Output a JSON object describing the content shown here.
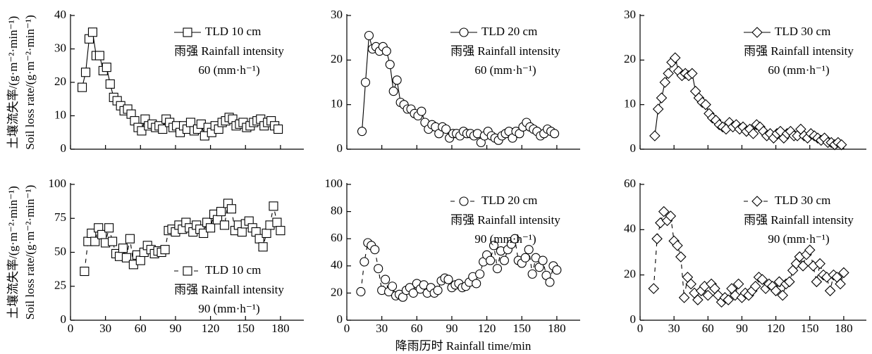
{
  "chart_data": [
    {
      "type": "line",
      "ylabel_cn": "土壤流失率/(g·m⁻²·min⁻¹)",
      "ylabel": "Soil loss rate/(g·m⁻²·min⁻¹)",
      "xlim": [
        0,
        200
      ],
      "xticks": [
        0,
        30,
        60,
        90,
        120,
        150,
        180
      ],
      "show_xtick_labels": false,
      "ylim": [
        0,
        40
      ],
      "yticks": [
        0,
        10,
        20,
        30,
        40
      ],
      "legend_loc": "upper right",
      "annotation": [
        "雨强 Rainfall intensity",
        "60 (mm·h⁻¹)"
      ],
      "series": [
        {
          "name": "TLD 10 cm",
          "color": "#000000",
          "marker": "square",
          "linestyle": "solid",
          "x": [
            10,
            13,
            16,
            19,
            22,
            25,
            28,
            31,
            34,
            37,
            40,
            43,
            46,
            49,
            52,
            55,
            58,
            61,
            64,
            67,
            70,
            73,
            76,
            79,
            82,
            85,
            88,
            91,
            94,
            97,
            100,
            103,
            106,
            109,
            112,
            115,
            118,
            121,
            124,
            127,
            130,
            133,
            136,
            139,
            142,
            145,
            148,
            151,
            154,
            157,
            160,
            163,
            166,
            169,
            172,
            175,
            178
          ],
          "values": [
            18.5,
            23,
            33,
            35,
            28,
            28,
            23.5,
            24.5,
            19.5,
            15.5,
            14.5,
            13,
            11.5,
            12,
            10.5,
            8.5,
            6.5,
            5.5,
            9,
            7,
            7.5,
            6.5,
            7,
            6,
            9,
            8,
            6.5,
            7,
            5,
            7,
            6,
            8,
            5.5,
            6,
            7.5,
            4,
            6.5,
            5,
            7,
            6,
            8,
            8.5,
            9.5,
            9,
            7,
            7.5,
            8,
            6.5,
            7,
            8,
            8.5,
            9,
            7,
            8,
            8.5,
            7,
            6
          ]
        }
      ]
    },
    {
      "type": "line",
      "xlim": [
        0,
        200
      ],
      "xticks": [
        0,
        30,
        60,
        90,
        120,
        150,
        180
      ],
      "show_xtick_labels": false,
      "ylim": [
        0,
        30
      ],
      "yticks": [
        0,
        10,
        20,
        30
      ],
      "legend_loc": "upper right",
      "annotation": [
        "雨强 Rainfall intensity",
        "60 (mm·h⁻¹)"
      ],
      "series": [
        {
          "name": "TLD 20 cm",
          "color": "#000000",
          "marker": "circle",
          "linestyle": "solid",
          "x": [
            13,
            16,
            19,
            22,
            25,
            28,
            31,
            34,
            37,
            40,
            43,
            46,
            49,
            52,
            55,
            58,
            61,
            64,
            67,
            70,
            73,
            76,
            79,
            82,
            85,
            88,
            91,
            94,
            97,
            100,
            103,
            106,
            109,
            112,
            115,
            118,
            121,
            124,
            127,
            130,
            133,
            136,
            139,
            142,
            145,
            148,
            151,
            154,
            157,
            160,
            163,
            166,
            169,
            172,
            175,
            178
          ],
          "values": [
            4,
            15,
            25.5,
            22.5,
            23,
            22,
            23,
            22,
            19,
            13,
            15.5,
            10.5,
            10,
            9,
            9,
            8,
            7.5,
            8.5,
            6,
            4.5,
            5.5,
            5,
            3.5,
            5,
            4.5,
            2.5,
            3.5,
            3.5,
            3,
            4,
            3.5,
            3.5,
            3,
            3.5,
            1.5,
            3,
            4,
            3,
            2.5,
            2,
            3,
            3.5,
            4,
            2.5,
            4,
            3.5,
            5,
            6,
            5,
            4.5,
            4,
            3,
            3.5,
            4.5,
            4,
            3.5
          ]
        }
      ]
    },
    {
      "type": "line",
      "xlim": [
        0,
        200
      ],
      "xticks": [
        0,
        30,
        60,
        90,
        120,
        150,
        180
      ],
      "show_xtick_labels": false,
      "ylim": [
        0,
        30
      ],
      "yticks": [
        0,
        10,
        20,
        30
      ],
      "legend_loc": "upper right",
      "annotation": [
        "雨强 Rainfall intensity",
        "60 (mm·h⁻¹)"
      ],
      "series": [
        {
          "name": "TLD 30 cm",
          "color": "#000000",
          "marker": "diamond",
          "linestyle": "solid",
          "x": [
            13,
            16,
            19,
            22,
            25,
            28,
            31,
            34,
            37,
            40,
            43,
            46,
            49,
            52,
            55,
            58,
            61,
            64,
            67,
            70,
            73,
            76,
            79,
            82,
            85,
            88,
            91,
            94,
            97,
            100,
            103,
            106,
            109,
            112,
            115,
            118,
            121,
            124,
            127,
            130,
            133,
            136,
            139,
            142,
            145,
            148,
            151,
            154,
            157,
            160,
            163,
            166,
            169,
            172,
            175,
            178
          ],
          "values": [
            3,
            9,
            11.5,
            15,
            17,
            19.5,
            20.5,
            17.5,
            16.5,
            17,
            16.5,
            17,
            13,
            11.5,
            10.5,
            10,
            8,
            7,
            6.5,
            5.5,
            5,
            4.5,
            6,
            5,
            5.5,
            4.5,
            5,
            4,
            4.5,
            3.5,
            5.5,
            5,
            4,
            3,
            3.5,
            2.5,
            3.5,
            4,
            2.5,
            3.5,
            4,
            3,
            3,
            4.5,
            3,
            2.5,
            3.5,
            3,
            2.5,
            2,
            2.5,
            1.5,
            1.5,
            1,
            1.5,
            1
          ]
        }
      ]
    },
    {
      "type": "line",
      "ylabel_cn": "土壤流失率/(g·m⁻²·min⁻¹)",
      "ylabel": "Soil loss rate/(g·m⁻²·min⁻¹)",
      "xlim": [
        0,
        200
      ],
      "xticks": [
        0,
        30,
        60,
        90,
        120,
        150,
        180
      ],
      "show_xtick_labels": true,
      "ylim": [
        0,
        100
      ],
      "yticks": [
        0,
        25,
        50,
        75,
        100
      ],
      "legend_loc": "lower right",
      "annotation": [
        "雨强 Rainfall intensity",
        "90 (mm·h⁻¹)"
      ],
      "series": [
        {
          "name": "TLD 10 cm",
          "color": "#000000",
          "marker": "square",
          "linestyle": "dashed",
          "x": [
            12,
            15,
            18,
            21,
            24,
            27,
            30,
            33,
            36,
            39,
            42,
            45,
            48,
            51,
            54,
            57,
            60,
            63,
            66,
            69,
            72,
            75,
            78,
            81,
            84,
            87,
            90,
            93,
            96,
            99,
            102,
            105,
            108,
            111,
            114,
            117,
            120,
            123,
            126,
            129,
            132,
            135,
            138,
            141,
            144,
            147,
            150,
            153,
            156,
            159,
            162,
            165,
            168,
            171,
            174,
            177,
            180
          ],
          "values": [
            36,
            58,
            64,
            58,
            68,
            63,
            57,
            68,
            58,
            49,
            47,
            53,
            46,
            60,
            41,
            48,
            44,
            50,
            55,
            52,
            49,
            51,
            50,
            52,
            66,
            67,
            65,
            70,
            67,
            72,
            68,
            65,
            70,
            67,
            64,
            72,
            68,
            78,
            74,
            80,
            70,
            86,
            82,
            66,
            70,
            65,
            71,
            73,
            68,
            65,
            60,
            54,
            64,
            70,
            84,
            72,
            66
          ]
        }
      ]
    },
    {
      "type": "line",
      "xlabel": "降雨历时 Rainfall time/min",
      "xlim": [
        0,
        200
      ],
      "xticks": [
        0,
        30,
        60,
        90,
        120,
        150,
        180
      ],
      "show_xtick_labels": true,
      "ylim": [
        0,
        100
      ],
      "yticks": [
        0,
        20,
        40,
        60,
        80,
        100
      ],
      "legend_loc": "upper right",
      "annotation": [
        "雨强 Rainfall intensity",
        "90 (mm·h⁻¹)"
      ],
      "series": [
        {
          "name": "TLD 20 cm",
          "color": "#000000",
          "marker": "circle",
          "linestyle": "dashed",
          "x": [
            12,
            15,
            18,
            21,
            24,
            27,
            30,
            33,
            36,
            39,
            42,
            45,
            48,
            51,
            54,
            57,
            60,
            63,
            66,
            69,
            72,
            75,
            78,
            81,
            84,
            87,
            90,
            93,
            96,
            99,
            102,
            105,
            108,
            111,
            114,
            117,
            120,
            123,
            126,
            129,
            132,
            135,
            138,
            141,
            144,
            147,
            150,
            153,
            156,
            159,
            162,
            165,
            168,
            171,
            174,
            177,
            180
          ],
          "values": [
            21,
            43,
            57,
            55,
            52,
            38,
            22,
            30,
            21,
            25,
            18,
            19,
            17,
            22,
            24,
            20,
            27,
            23,
            26,
            20,
            24,
            20,
            22,
            29,
            31,
            30,
            24,
            26,
            27,
            24,
            25,
            28,
            32,
            27,
            34,
            43,
            48,
            44,
            55,
            38,
            51,
            44,
            52,
            56,
            60,
            44,
            42,
            46,
            52,
            34,
            46,
            39,
            44,
            33,
            28,
            40,
            37
          ]
        }
      ]
    },
    {
      "type": "line",
      "xlim": [
        0,
        200
      ],
      "xticks": [
        0,
        30,
        60,
        90,
        120,
        150,
        180
      ],
      "show_xtick_labels": true,
      "ylim": [
        0,
        60
      ],
      "yticks": [
        0,
        20,
        40,
        60
      ],
      "legend_loc": "upper right",
      "annotation": [
        "雨强 Rainfall intensity",
        "90 (mm·h⁻¹)"
      ],
      "series": [
        {
          "name": "TLD 30 cm",
          "color": "#000000",
          "marker": "diamond",
          "linestyle": "dashed",
          "x": [
            12,
            15,
            18,
            21,
            24,
            27,
            30,
            33,
            36,
            39,
            42,
            45,
            48,
            51,
            54,
            57,
            60,
            63,
            66,
            69,
            72,
            75,
            78,
            81,
            84,
            87,
            90,
            93,
            96,
            99,
            102,
            105,
            108,
            111,
            114,
            117,
            120,
            123,
            126,
            129,
            132,
            135,
            138,
            141,
            144,
            147,
            150,
            153,
            156,
            159,
            162,
            165,
            168,
            171,
            174,
            177,
            180
          ],
          "values": [
            14,
            36,
            43,
            48,
            44,
            46,
            35,
            33,
            28,
            10,
            19,
            16,
            12,
            9,
            13,
            15,
            11,
            16,
            14,
            11,
            8,
            10,
            9,
            14,
            11,
            16,
            10,
            12,
            11,
            13,
            15,
            19,
            18,
            14,
            16,
            15,
            13,
            17,
            11,
            16,
            17,
            22,
            25,
            28,
            24,
            29,
            31,
            24,
            17,
            25,
            20,
            19,
            13,
            20,
            19,
            16,
            21
          ]
        }
      ]
    }
  ]
}
